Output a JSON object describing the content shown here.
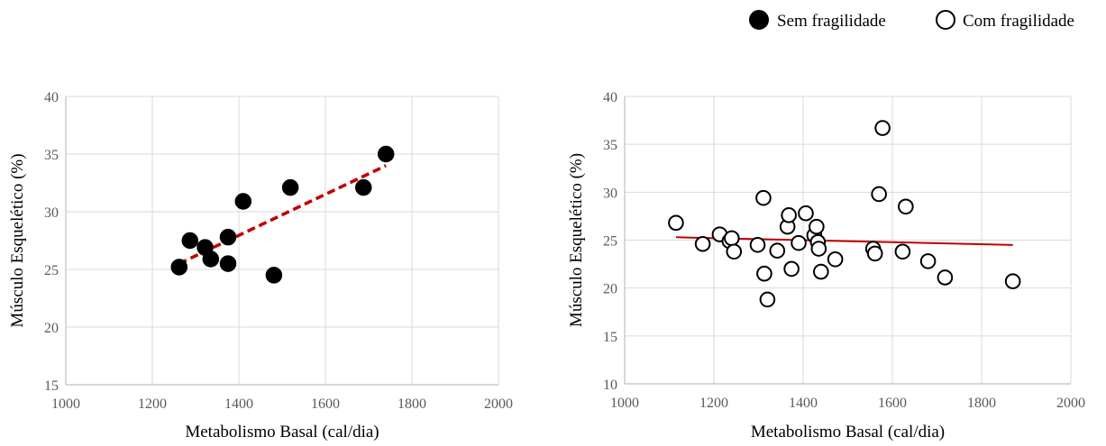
{
  "legend": {
    "items": [
      {
        "label": "Sem fragilidade",
        "marker": "filled-circle",
        "color": "#000000"
      },
      {
        "label": "Com fragilidade",
        "marker": "open-circle",
        "color": "#000000"
      }
    ],
    "placement": "top-right"
  },
  "colors": {
    "grid": "#d9d9d9",
    "axis": "#bfbfbf",
    "trend_left": "#c00000",
    "trend_right": "#c00000"
  },
  "chart_data": [
    {
      "type": "scatter",
      "series_label": "Sem fragilidade",
      "marker": "filled",
      "xlabel": "Metabolismo Basal (cal/dia)",
      "ylabel": "Músculo Esquelético (%)",
      "xlim": [
        1000,
        2000
      ],
      "ylim": [
        15,
        40
      ],
      "xticks": [
        1000,
        1200,
        1400,
        1600,
        1800,
        2000
      ],
      "yticks": [
        15,
        20,
        25,
        30,
        35,
        40
      ],
      "grid": "vertical-and-horizontal",
      "trendline": {
        "style": "dashed",
        "from": [
          1262,
          25.5
        ],
        "to": [
          1740,
          34.0
        ]
      },
      "points": [
        {
          "x": 1262,
          "y": 25.2
        },
        {
          "x": 1287,
          "y": 27.5
        },
        {
          "x": 1322,
          "y": 26.9
        },
        {
          "x": 1335,
          "y": 25.9
        },
        {
          "x": 1375,
          "y": 25.5
        },
        {
          "x": 1375,
          "y": 27.8
        },
        {
          "x": 1410,
          "y": 30.9
        },
        {
          "x": 1481,
          "y": 24.5
        },
        {
          "x": 1519,
          "y": 32.1
        },
        {
          "x": 1688,
          "y": 32.1
        },
        {
          "x": 1740,
          "y": 35.0
        }
      ]
    },
    {
      "type": "scatter",
      "series_label": "Com fragilidade",
      "marker": "open",
      "xlabel": "Metabolismo Basal (cal/dia)",
      "ylabel": "Músculo Esquelético (%)",
      "xlim": [
        1000,
        2000
      ],
      "ylim": [
        10,
        40
      ],
      "xticks": [
        1000,
        1200,
        1400,
        1600,
        1800,
        2000
      ],
      "yticks": [
        10,
        15,
        20,
        25,
        30,
        35,
        40
      ],
      "grid": "vertical-and-horizontal",
      "trendline": {
        "style": "solid",
        "from": [
          1115,
          25.3
        ],
        "to": [
          1870,
          24.5
        ]
      },
      "points": [
        {
          "x": 1115,
          "y": 26.8
        },
        {
          "x": 1175,
          "y": 24.6
        },
        {
          "x": 1213,
          "y": 25.6
        },
        {
          "x": 1235,
          "y": 24.9
        },
        {
          "x": 1240,
          "y": 25.2
        },
        {
          "x": 1245,
          "y": 23.8
        },
        {
          "x": 1298,
          "y": 24.5
        },
        {
          "x": 1311,
          "y": 29.4
        },
        {
          "x": 1313,
          "y": 21.5
        },
        {
          "x": 1320,
          "y": 18.8
        },
        {
          "x": 1342,
          "y": 23.9
        },
        {
          "x": 1365,
          "y": 26.4
        },
        {
          "x": 1368,
          "y": 27.6
        },
        {
          "x": 1374,
          "y": 22.0
        },
        {
          "x": 1390,
          "y": 24.7
        },
        {
          "x": 1406,
          "y": 27.8
        },
        {
          "x": 1425,
          "y": 25.5
        },
        {
          "x": 1430,
          "y": 26.4
        },
        {
          "x": 1433,
          "y": 24.8
        },
        {
          "x": 1435,
          "y": 24.1
        },
        {
          "x": 1440,
          "y": 21.7
        },
        {
          "x": 1472,
          "y": 23.0
        },
        {
          "x": 1557,
          "y": 24.1
        },
        {
          "x": 1561,
          "y": 23.6
        },
        {
          "x": 1570,
          "y": 29.8
        },
        {
          "x": 1578,
          "y": 36.7
        },
        {
          "x": 1623,
          "y": 23.8
        },
        {
          "x": 1630,
          "y": 28.5
        },
        {
          "x": 1680,
          "y": 22.8
        },
        {
          "x": 1718,
          "y": 21.1
        },
        {
          "x": 1870,
          "y": 20.7
        }
      ]
    }
  ]
}
